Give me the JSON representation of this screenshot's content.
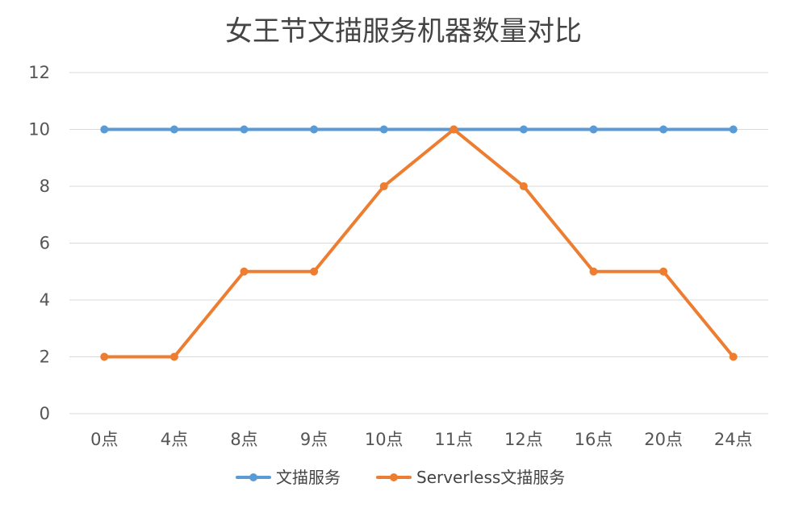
{
  "colors": {
    "series_1": "#5b9bd5",
    "series_2": "#ed7d31",
    "grid": "#d9d9d9",
    "text": "#555555"
  },
  "chart_data": {
    "type": "line",
    "title": "女王节文描服务机器数量对比",
    "xlabel": "",
    "ylabel": "",
    "categories": [
      "0点",
      "4点",
      "8点",
      "9点",
      "10点",
      "11点",
      "12点",
      "16点",
      "20点",
      "24点"
    ],
    "series": [
      {
        "name": "文描服务",
        "values": [
          10,
          10,
          10,
          10,
          10,
          10,
          10,
          10,
          10,
          10
        ],
        "color": "#5b9bd5"
      },
      {
        "name": "Serverless文描服务",
        "values": [
          2,
          2,
          5,
          5,
          8,
          10,
          8,
          5,
          5,
          2
        ],
        "color": "#ed7d31"
      }
    ],
    "ylim": [
      0,
      12
    ],
    "yticks": [
      0,
      2,
      4,
      6,
      8,
      10,
      12
    ],
    "grid": true,
    "legend_position": "bottom"
  }
}
